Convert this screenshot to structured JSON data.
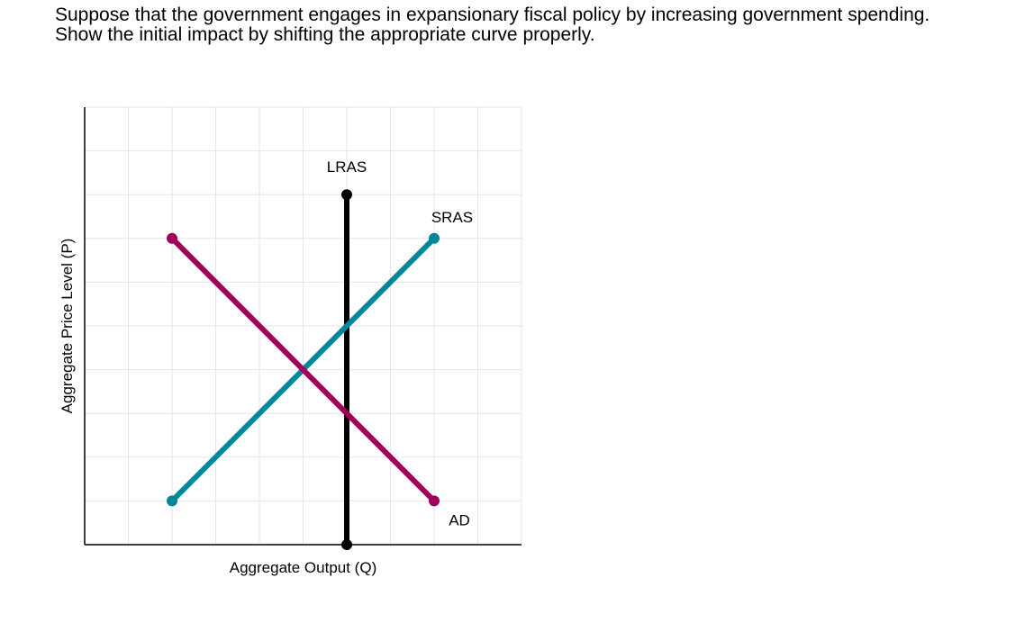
{
  "question": {
    "line1": "Suppose that the government engages in expansionary fiscal policy by increasing government spending.",
    "line2": "Show the initial impact by shifting the appropriate curve properly."
  },
  "chart_data": {
    "type": "line",
    "xlabel": "Aggregate Output (Q)",
    "ylabel": "Aggregate Price Level (P)",
    "xlim": [
      0,
      10
    ],
    "ylim": [
      0,
      10
    ],
    "grid": true,
    "series": [
      {
        "name": "LRAS",
        "color": "#000000",
        "points": [
          [
            6,
            0
          ],
          [
            6,
            8
          ]
        ]
      },
      {
        "name": "SRAS",
        "color": "#00889a",
        "points": [
          [
            2,
            1
          ],
          [
            8,
            7
          ]
        ]
      },
      {
        "name": "AD",
        "color": "#a0005a",
        "points": [
          [
            2,
            7
          ],
          [
            8,
            1
          ]
        ]
      }
    ]
  }
}
